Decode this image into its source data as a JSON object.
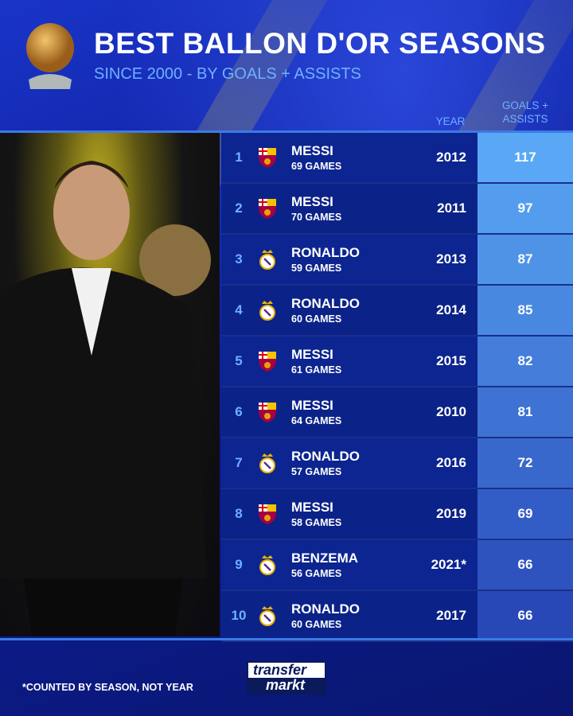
{
  "header": {
    "title": "BEST BALLON D'OR SEASONS",
    "subtitle": "SINCE 2000 - BY GOALS + ASSISTS"
  },
  "columns": {
    "year": "YEAR",
    "value_line1": "GOALS +",
    "value_line2": "ASSISTS"
  },
  "footnote": "*COUNTED BY SEASON, NOT YEAR",
  "logo": {
    "line1": "transfer",
    "line2": "markt"
  },
  "colors": {
    "barcelona": "#a50044",
    "real_madrid": "#f5f5f5",
    "value_top": "#5aa8f5",
    "value_bottom": "#2848b8"
  },
  "chart_data": {
    "type": "table",
    "title": "BEST BALLON D'OR SEASONS",
    "subtitle": "SINCE 2000 - BY GOALS + ASSISTS",
    "rows": [
      {
        "rank": "1",
        "player": "MESSI",
        "club_icon": "barcelona-crest",
        "games": "69 GAMES",
        "year": "2012",
        "value": "117"
      },
      {
        "rank": "2",
        "player": "MESSI",
        "club_icon": "barcelona-crest",
        "games": "70 GAMES",
        "year": "2011",
        "value": "97"
      },
      {
        "rank": "3",
        "player": "RONALDO",
        "club_icon": "real-madrid-crest",
        "games": "59 GAMES",
        "year": "2013",
        "value": "87"
      },
      {
        "rank": "4",
        "player": "RONALDO",
        "club_icon": "real-madrid-crest",
        "games": "60 GAMES",
        "year": "2014",
        "value": "85"
      },
      {
        "rank": "5",
        "player": "MESSI",
        "club_icon": "barcelona-crest",
        "games": "61 GAMES",
        "year": "2015",
        "value": "82"
      },
      {
        "rank": "6",
        "player": "MESSI",
        "club_icon": "barcelona-crest",
        "games": "64 GAMES",
        "year": "2010",
        "value": "81"
      },
      {
        "rank": "7",
        "player": "RONALDO",
        "club_icon": "real-madrid-crest",
        "games": "57 GAMES",
        "year": "2016",
        "value": "72"
      },
      {
        "rank": "8",
        "player": "MESSI",
        "club_icon": "barcelona-crest",
        "games": "58 GAMES",
        "year": "2019",
        "value": "69"
      },
      {
        "rank": "9",
        "player": "BENZEMA",
        "club_icon": "real-madrid-crest",
        "games": "56 GAMES",
        "year": "2021*",
        "value": "66"
      },
      {
        "rank": "10",
        "player": "RONALDO",
        "club_icon": "real-madrid-crest",
        "games": "60 GAMES",
        "year": "2017",
        "value": "66"
      }
    ]
  }
}
